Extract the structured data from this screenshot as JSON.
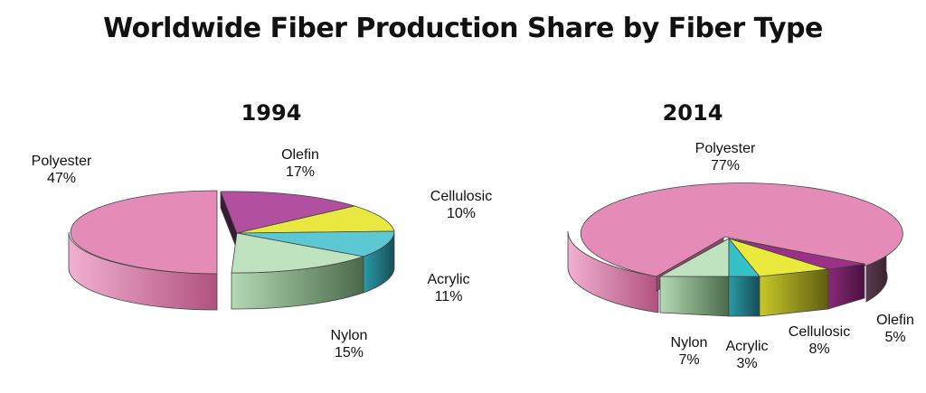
{
  "title": "Worldwide Fiber Production Share by Fiber Type",
  "chart_data": [
    {
      "type": "pie",
      "title": "1994",
      "slices": [
        {
          "label": "Polyester",
          "value": 47,
          "pct": "47%",
          "color": "#e48cb7",
          "exploded": true
        },
        {
          "label": "Olefin",
          "value": 17,
          "pct": "17%",
          "color": "#b34fa0"
        },
        {
          "label": "Cellulosic",
          "value": 10,
          "pct": "10%",
          "color": "#e8e840"
        },
        {
          "label": "Acrylic",
          "value": 11,
          "pct": "11%",
          "color": "#5cc8d4"
        },
        {
          "label": "Nylon",
          "value": 15,
          "pct": "15%",
          "color": "#bfe2bf"
        }
      ]
    },
    {
      "type": "pie",
      "title": "2014",
      "slices": [
        {
          "label": "Polyester",
          "value": 77,
          "pct": "77%",
          "color": "#e48cb7",
          "exploded": true
        },
        {
          "label": "Nylon",
          "value": 7,
          "pct": "7%",
          "color": "#bfe2bf"
        },
        {
          "label": "Acrylic",
          "value": 3,
          "pct": "3%",
          "color": "#36c0c8"
        },
        {
          "label": "Cellulosic",
          "value": 8,
          "pct": "8%",
          "color": "#eaea3c"
        },
        {
          "label": "Olefin",
          "value": 5,
          "pct": "5%",
          "color": "#9c2f86"
        }
      ]
    }
  ]
}
